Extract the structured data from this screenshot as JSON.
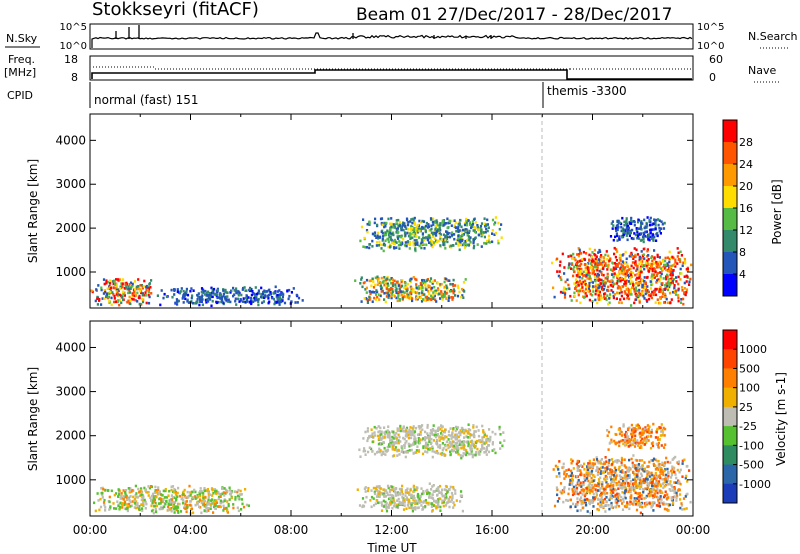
{
  "header": {
    "title": "Stokkseyri (fitACF)",
    "beam": "Beam 01",
    "date_range": "27/Dec/2017 - 28/Dec/2017"
  },
  "top_panels": {
    "nsky_label": "N.Sky",
    "nsky_ticks": [
      "10^5",
      "10^0"
    ],
    "nsearch_label": "N.Search",
    "freq_label_line1": "Freq.",
    "freq_label_line2": "[MHz]",
    "freq_ticks": [
      "18",
      "8"
    ],
    "nave_label": "Nave",
    "nave_ticks": [
      "60",
      "0"
    ],
    "cpid_label": "CPID",
    "cpid_segments": [
      {
        "label": "normal (fast) 151",
        "start_hour": 0
      },
      {
        "label": "themis -3300",
        "start_hour": 18
      }
    ]
  },
  "colors": {
    "power_scale": [
      "#0000ff",
      "#2455b8",
      "#338a6a",
      "#55bb44",
      "#ffdd00",
      "#ff9900",
      "#ff5500",
      "#ff0000"
    ],
    "velocity_scale": [
      "#1a3cb8",
      "#2a66a8",
      "#2e8c60",
      "#55c030",
      "#bdbdb4",
      "#f0b000",
      "#ff8000",
      "#ff4400",
      "#ff0000"
    ]
  },
  "chart_data": [
    {
      "type": "heatmap",
      "name": "power-panel",
      "ylabel": "Slant Range [km]",
      "xlabel": "",
      "xlim": [
        0,
        24
      ],
      "ylim": [
        180,
        4600
      ],
      "x_tick_labels": [],
      "y_ticks": [
        1000,
        2000,
        3000,
        4000
      ],
      "colorbar": {
        "label": "Power [dB]",
        "tick_labels": [
          "28",
          "24",
          "20",
          "16",
          "12",
          "8",
          "4"
        ],
        "range": [
          0,
          32
        ]
      },
      "cpid_boundary_hour": 18,
      "echo_regions": [
        {
          "x": [
            0,
            2.6
          ],
          "y": [
            250,
            900
          ],
          "dominant": "green-orange-red"
        },
        {
          "x": [
            2.6,
            8.5
          ],
          "y": [
            250,
            700
          ],
          "dominant": "blue"
        },
        {
          "x": [
            10.5,
            16.5
          ],
          "y": [
            1500,
            2300
          ],
          "dominant": "blue-green"
        },
        {
          "x": [
            10.5,
            15.0
          ],
          "y": [
            300,
            950
          ],
          "dominant": "blue-green-orange"
        },
        {
          "x": [
            18.3,
            24
          ],
          "y": [
            250,
            1600
          ],
          "dominant": "orange-red"
        },
        {
          "x": [
            20.5,
            23.0
          ],
          "y": [
            1700,
            2300
          ],
          "dominant": "blue"
        }
      ]
    },
    {
      "type": "heatmap",
      "name": "velocity-panel",
      "ylabel": "Slant Range [km]",
      "xlabel": "Time UT",
      "xlim": [
        0,
        24
      ],
      "ylim": [
        180,
        4600
      ],
      "x_tick_labels": [
        "00:00",
        "04:00",
        "08:00",
        "12:00",
        "16:00",
        "20:00",
        "00:00"
      ],
      "y_ticks": [
        1000,
        2000,
        3000,
        4000
      ],
      "colorbar": {
        "label": "Velocity [m s-1]",
        "tick_labels": [
          "1000",
          "500",
          "100",
          "25",
          "-25",
          "-100",
          "-500",
          "-1000"
        ]
      },
      "cpid_boundary_hour": 18,
      "echo_regions": [
        {
          "x": [
            0,
            6.5
          ],
          "y": [
            250,
            900
          ],
          "dominant": "grey-green"
        },
        {
          "x": [
            10.5,
            16.5
          ],
          "y": [
            1500,
            2300
          ],
          "dominant": "grey"
        },
        {
          "x": [
            10.5,
            15.0
          ],
          "y": [
            300,
            950
          ],
          "dominant": "grey"
        },
        {
          "x": [
            18.3,
            24
          ],
          "y": [
            250,
            1600
          ],
          "dominant": "orange-grey"
        },
        {
          "x": [
            20.5,
            23.0
          ],
          "y": [
            1700,
            2300
          ],
          "dominant": "orange"
        }
      ]
    }
  ]
}
